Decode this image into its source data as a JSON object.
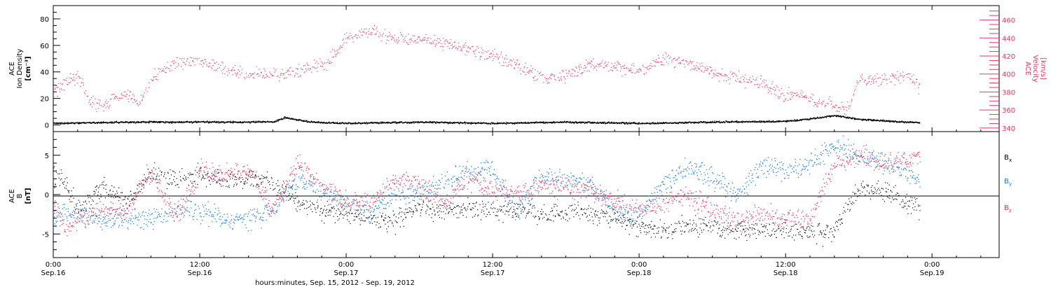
{
  "colors": {
    "density": "#000000",
    "velocity": "#e8385e",
    "bx": "#000000",
    "by": "#1e7fe0",
    "bz": "#e8385e",
    "axis": "#000000"
  },
  "x_axis": {
    "ticks": [
      {
        "time": "0:00",
        "date": "Sep.16",
        "hours": 0
      },
      {
        "time": "12:00",
        "date": "Sep.16",
        "hours": 12
      },
      {
        "time": "0:00",
        "date": "Sep.17",
        "hours": 24
      },
      {
        "time": "12:00",
        "date": "Sep.17",
        "hours": 36
      },
      {
        "time": "0:00",
        "date": "Sep.18",
        "hours": 48
      },
      {
        "time": "12:00",
        "date": "Sep.18",
        "hours": 60
      },
      {
        "time": "0:00",
        "date": "Sep.19",
        "hours": 72
      }
    ],
    "label": "hours:minutes, Sep. 15, 2012 - Sep. 19, 2012",
    "range_hours": [
      0,
      77.5
    ]
  },
  "top_panel": {
    "left_label_lines": [
      "ACE",
      "Ion Density",
      "[cm⁻³]"
    ],
    "right_label_lines": [
      "ACE",
      "Velocity",
      "[km/s]"
    ],
    "left_ticks": [
      "0",
      "20",
      "40",
      "60",
      "80"
    ],
    "right_ticks": [
      "340",
      "360",
      "380",
      "400",
      "420",
      "440",
      "460"
    ]
  },
  "bottom_panel": {
    "left_label_lines": [
      "ACE",
      "B",
      "[nT]"
    ],
    "left_ticks": [
      "-5",
      "0",
      "5"
    ],
    "legend": [
      {
        "text": "B",
        "sub": "x",
        "color_key": "bx"
      },
      {
        "text": "B",
        "sub": "y",
        "color_key": "by"
      },
      {
        "text": "B",
        "sub": "z",
        "color_key": "bz"
      }
    ]
  },
  "chart_data": [
    {
      "type": "scatter",
      "title": "",
      "xlabel": "hours:minutes, Sep. 15, 2012 - Sep. 19, 2012",
      "ylabel": "ACE Ion Density [cm⁻³]",
      "y2label": "ACE Velocity [km/s]",
      "xlim": [
        "Sep.16 0:00",
        "Sep.19 5:30"
      ],
      "ylim": [
        -5,
        90
      ],
      "y2lim": [
        336,
        476
      ],
      "grid": false,
      "series": [
        {
          "name": "Ion Density",
          "axis": "left",
          "x": [
            "Sep.16 0:00",
            "Sep.16 6:00",
            "Sep.16 12:00",
            "Sep.16 18:00",
            "Sep.16 19:00",
            "Sep.16 21:00",
            "Sep.17 0:00",
            "Sep.17 6:00",
            "Sep.17 12:00",
            "Sep.17 18:00",
            "Sep.18 0:00",
            "Sep.18 6:00",
            "Sep.18 12:00",
            "Sep.18 15:00",
            "Sep.18 16:00",
            "Sep.18 18:00",
            "Sep.18 21:00",
            "Sep.18 23:00"
          ],
          "values": [
            1.5,
            2.5,
            2.5,
            2.5,
            6,
            2.5,
            1.5,
            2.5,
            1.5,
            2.5,
            1.5,
            2.5,
            3,
            6,
            7.5,
            4.5,
            3,
            2
          ]
        },
        {
          "name": "Velocity",
          "axis": "right",
          "x": [
            "Sep.16 0:00",
            "Sep.16 1:00",
            "Sep.16 2:00",
            "Sep.16 3:00",
            "Sep.16 4:00",
            "Sep.16 5:00",
            "Sep.16 6:00",
            "Sep.16 7:00",
            "Sep.16 8:00",
            "Sep.16 9:00",
            "Sep.16 10:00",
            "Sep.16 12:00",
            "Sep.16 14:00",
            "Sep.16 16:00",
            "Sep.16 18:00",
            "Sep.16 20:00",
            "Sep.16 22:00",
            "Sep.16 23:00",
            "Sep.17 0:00",
            "Sep.17 2:00",
            "Sep.17 4:00",
            "Sep.17 6:00",
            "Sep.17 8:00",
            "Sep.17 10:00",
            "Sep.17 12:00",
            "Sep.17 14:00",
            "Sep.17 16:00",
            "Sep.17 18:00",
            "Sep.17 20:00",
            "Sep.17 22:00",
            "Sep.18 0:00",
            "Sep.18 2:00",
            "Sep.18 4:00",
            "Sep.18 6:00",
            "Sep.18 8:00",
            "Sep.18 10:00",
            "Sep.18 12:00",
            "Sep.18 14:00",
            "Sep.18 16:00",
            "Sep.18 17:00",
            "Sep.18 18:00",
            "Sep.18 20:00",
            "Sep.18 22:00",
            "Sep.18 23:00"
          ],
          "values": [
            379,
            390,
            398,
            370,
            364,
            373,
            378,
            367,
            395,
            405,
            412,
            415,
            405,
            400,
            400,
            403,
            410,
            420,
            440,
            448,
            440,
            440,
            435,
            427,
            420,
            410,
            395,
            398,
            410,
            408,
            403,
            418,
            413,
            401,
            395,
            390,
            377,
            372,
            365,
            360,
            395,
            395,
            398,
            385
          ]
        }
      ]
    },
    {
      "type": "scatter",
      "title": "",
      "xlabel": "hours:minutes, Sep. 15, 2012 - Sep. 19, 2012",
      "ylabel": "ACE B [nT]",
      "xlim": [
        "Sep.16 0:00",
        "Sep.19 5:30"
      ],
      "ylim": [
        -8,
        8
      ],
      "grid": false,
      "series": [
        {
          "name": "Bx",
          "x": [
            "Sep.16 0:00",
            "Sep.16 1:00",
            "Sep.16 2:00",
            "Sep.16 4:00",
            "Sep.16 6:00",
            "Sep.16 8:00",
            "Sep.16 10:00",
            "Sep.16 12:00",
            "Sep.16 14:00",
            "Sep.16 16:00",
            "Sep.16 18:00",
            "Sep.16 20:00",
            "Sep.16 22:00",
            "Sep.17 0:00",
            "Sep.17 2:00",
            "Sep.17 4:00",
            "Sep.17 6:00",
            "Sep.17 8:00",
            "Sep.17 10:00",
            "Sep.17 12:00",
            "Sep.17 14:00",
            "Sep.17 16:00",
            "Sep.17 18:00",
            "Sep.17 20:00",
            "Sep.17 22:00",
            "Sep.18 0:00",
            "Sep.18 2:00",
            "Sep.18 4:00",
            "Sep.18 6:00",
            "Sep.18 8:00",
            "Sep.18 10:00",
            "Sep.18 12:00",
            "Sep.18 14:00",
            "Sep.18 16:00",
            "Sep.18 18:00",
            "Sep.18 20:00",
            "Sep.18 22:00",
            "Sep.18 23:00"
          ],
          "values": [
            2.5,
            1.5,
            -2,
            1,
            -1,
            3,
            2,
            2.5,
            2,
            2,
            1.5,
            -1,
            -2,
            -2.5,
            -3,
            -3.5,
            -1.5,
            -2,
            -1.5,
            -2,
            -2,
            -2.5,
            -2,
            -2.5,
            -3,
            -4,
            -4.5,
            -4,
            -4,
            -4.5,
            -4.5,
            -4.5,
            -5,
            -4.5,
            1,
            0.5,
            -1,
            -2
          ]
        },
        {
          "name": "By",
          "x": [
            "Sep.16 0:00",
            "Sep.16 1:00",
            "Sep.16 2:00",
            "Sep.16 4:00",
            "Sep.16 6:00",
            "Sep.16 8:00",
            "Sep.16 10:00",
            "Sep.16 12:00",
            "Sep.16 14:00",
            "Sep.16 16:00",
            "Sep.16 18:00",
            "Sep.16 20:00",
            "Sep.16 22:00",
            "Sep.17 0:00",
            "Sep.17 2:00",
            "Sep.17 4:00",
            "Sep.17 6:00",
            "Sep.17 8:00",
            "Sep.17 10:00",
            "Sep.17 12:00",
            "Sep.17 14:00",
            "Sep.17 16:00",
            "Sep.17 18:00",
            "Sep.17 20:00",
            "Sep.17 22:00",
            "Sep.18 0:00",
            "Sep.18 2:00",
            "Sep.18 4:00",
            "Sep.18 6:00",
            "Sep.18 8:00",
            "Sep.18 10:00",
            "Sep.18 12:00",
            "Sep.18 14:00",
            "Sep.18 16:00",
            "Sep.18 18:00",
            "Sep.18 20:00",
            "Sep.18 22:00",
            "Sep.18 23:00"
          ],
          "values": [
            -3.5,
            -2,
            -2.5,
            -3,
            -3,
            -3,
            -2,
            -2,
            -3,
            -3,
            -2,
            2,
            0.5,
            -1,
            -2,
            0,
            0,
            1.5,
            3,
            3,
            -2,
            2,
            2,
            1.5,
            -2,
            -3,
            1.5,
            3.5,
            2,
            0,
            3.5,
            3,
            4,
            6.5,
            5,
            4,
            3,
            1.5
          ]
        },
        {
          "name": "Bz",
          "x": [
            "Sep.16 0:00",
            "Sep.16 1:00",
            "Sep.16 2:00",
            "Sep.16 4:00",
            "Sep.16 6:00",
            "Sep.16 8:00",
            "Sep.16 10:00",
            "Sep.16 12:00",
            "Sep.16 14:00",
            "Sep.16 16:00",
            "Sep.16 18:00",
            "Sep.16 20:00",
            "Sep.16 22:00",
            "Sep.17 0:00",
            "Sep.17 2:00",
            "Sep.17 4:00",
            "Sep.17 6:00",
            "Sep.17 8:00",
            "Sep.17 10:00",
            "Sep.17 12:00",
            "Sep.17 14:00",
            "Sep.17 16:00",
            "Sep.17 18:00",
            "Sep.17 20:00",
            "Sep.17 22:00",
            "Sep.18 0:00",
            "Sep.18 2:00",
            "Sep.18 4:00",
            "Sep.18 6:00",
            "Sep.18 8:00",
            "Sep.18 10:00",
            "Sep.18 12:00",
            "Sep.18 14:00",
            "Sep.18 16:00",
            "Sep.18 18:00",
            "Sep.18 20:00",
            "Sep.18 22:00",
            "Sep.18 23:00"
          ],
          "values": [
            -1,
            -4.5,
            -3,
            -2,
            -2,
            3,
            -3,
            3,
            2.5,
            3,
            -2,
            4,
            1,
            -1,
            -1,
            2,
            1.5,
            -1,
            2,
            0.5,
            0,
            1.5,
            1,
            0.5,
            -1,
            -2,
            -1,
            0,
            -2,
            -3.5,
            -2.5,
            -3,
            -3,
            4,
            5,
            4,
            4.5,
            5
          ]
        }
      ]
    }
  ]
}
